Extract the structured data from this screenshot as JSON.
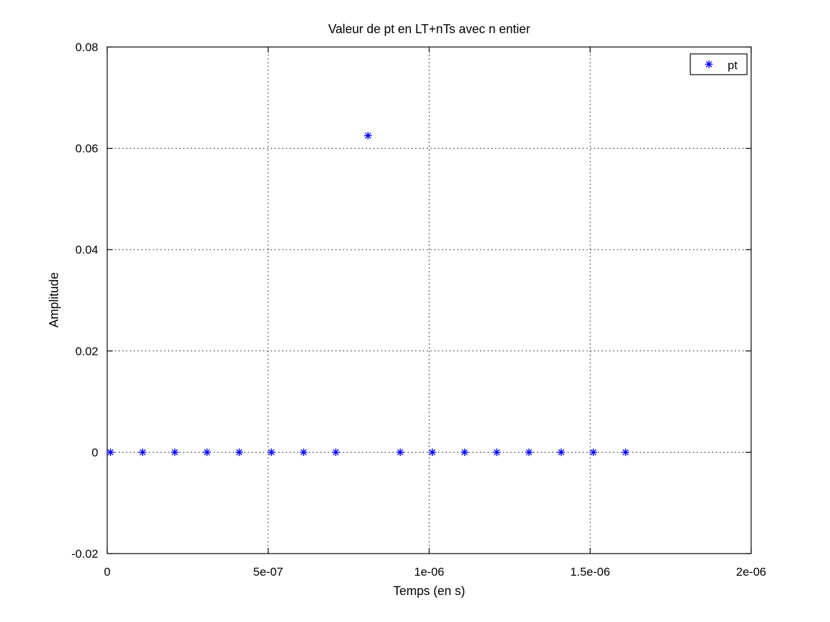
{
  "chart_data": {
    "type": "scatter",
    "title": "Valeur de pt en LT+nTs avec n entier",
    "xlabel": "Temps (en s)",
    "ylabel": "Amplitude",
    "xlim": [
      0,
      2e-06
    ],
    "ylim": [
      -0.02,
      0.08
    ],
    "x_ticks": [
      0,
      5e-07,
      1e-06,
      1.5e-06,
      2e-06
    ],
    "x_tick_labels": [
      "0",
      "5e-07",
      "1e-06",
      "1.5e-06",
      "2e-06"
    ],
    "y_ticks": [
      -0.02,
      0,
      0.02,
      0.04,
      0.06,
      0.08
    ],
    "y_tick_labels": [
      "-0.02",
      "0",
      "0.02",
      "0.04",
      "0.06",
      "0.08"
    ],
    "grid": true,
    "legend_position": "top-right",
    "marker": "asterisk",
    "colors": {
      "series": "#0000ff",
      "axes": "#000000",
      "grid": "#000000"
    },
    "series": [
      {
        "name": "pt",
        "x": [
          1e-08,
          1.1e-07,
          2.1e-07,
          3.1e-07,
          4.1e-07,
          5.1e-07,
          6.1e-07,
          7.1e-07,
          8.1e-07,
          9.1e-07,
          1.01e-06,
          1.11e-06,
          1.21e-06,
          1.31e-06,
          1.41e-06,
          1.51e-06,
          1.61e-06
        ],
        "y": [
          0,
          0,
          0,
          0,
          0,
          0,
          0,
          0,
          0.0625,
          0,
          0,
          0,
          0,
          0,
          0,
          0,
          0
        ]
      }
    ]
  }
}
